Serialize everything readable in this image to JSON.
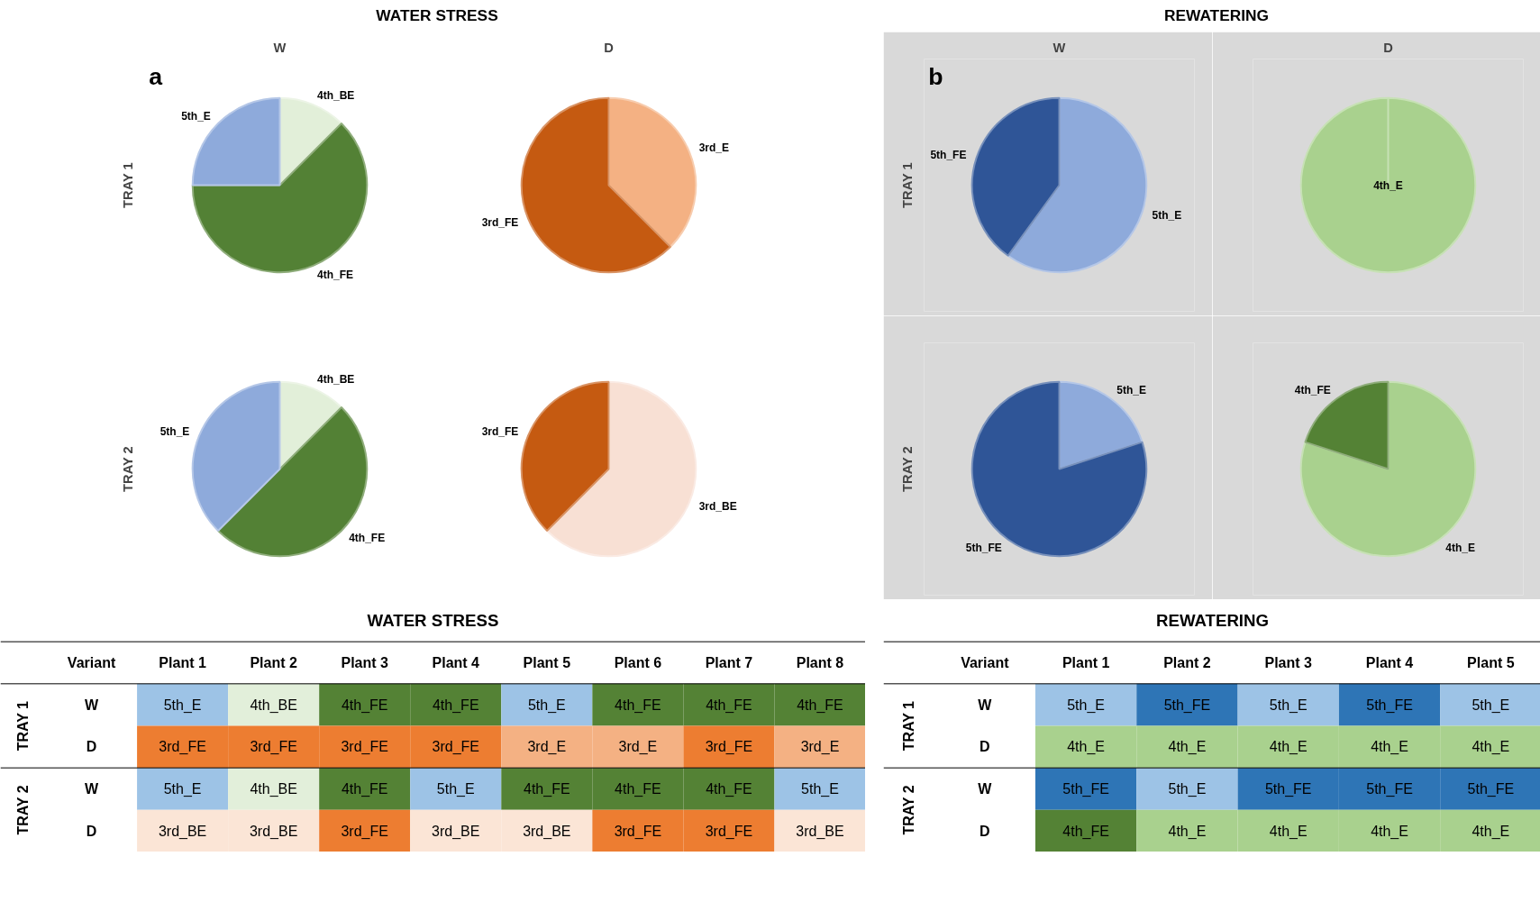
{
  "chart_data": [
    {
      "type": "pie",
      "title": "W",
      "ylabel": "TRAY 1",
      "annotations": [
        "WATER STRESS",
        "a"
      ],
      "categories": [
        "4th_BE",
        "4th_FE",
        "5th_E"
      ],
      "values": [
        12.5,
        62.5,
        25
      ],
      "colors": [
        "#e2efd9",
        "#538135",
        "#8eaadb"
      ]
    },
    {
      "type": "pie",
      "title": "D",
      "categories": [
        "3rd_E",
        "3rd_FE"
      ],
      "values": [
        37.5,
        62.5
      ],
      "colors": [
        "#f4b183",
        "#c55a11"
      ]
    },
    {
      "type": "pie",
      "ylabel": "TRAY 2",
      "categories": [
        "4th_BE",
        "4th_FE",
        "5th_E"
      ],
      "values": [
        12.5,
        50,
        37.5
      ],
      "colors": [
        "#e2efd9",
        "#538135",
        "#8eaadb"
      ]
    },
    {
      "type": "pie",
      "categories": [
        "3rd_BE",
        "3rd_FE"
      ],
      "values": [
        62.5,
        37.5
      ],
      "colors": [
        "#f8e0d4",
        "#c55a11"
      ]
    },
    {
      "type": "pie",
      "title": "W",
      "ylabel": "TRAY 1",
      "annotations": [
        "REWATERING",
        "b"
      ],
      "categories": [
        "5th_E",
        "5th_FE"
      ],
      "values": [
        60,
        40
      ],
      "colors": [
        "#8eaadb",
        "#2f5597"
      ]
    },
    {
      "type": "pie",
      "title": "D",
      "categories": [
        "4th_E"
      ],
      "values": [
        100
      ],
      "colors": [
        "#a9d18e"
      ]
    },
    {
      "type": "pie",
      "ylabel": "TRAY 2",
      "categories": [
        "5th_E",
        "5th_FE"
      ],
      "values": [
        20,
        80
      ],
      "colors": [
        "#8eaadb",
        "#2f5597"
      ]
    },
    {
      "type": "pie",
      "categories": [
        "4th_E",
        "4th_FE"
      ],
      "values": [
        80,
        20
      ],
      "colors": [
        "#a9d18e",
        "#548235"
      ]
    },
    {
      "type": "other",
      "title": "WATER STRESS",
      "ylabel": "Variant",
      "categories": [
        "Plant 1",
        "Plant 2",
        "Plant 3",
        "Plant 4",
        "Plant 5",
        "Plant 6",
        "Plant 7",
        "Plant 8"
      ],
      "y_categories": [
        "W",
        "D",
        "W",
        "D"
      ],
      "annotations": [
        "TRAY 1",
        "TRAY 2"
      ],
      "cell_labels": [
        [
          "5th_E",
          "4th_BE",
          "4th_FE",
          "4th_FE",
          "5th_E",
          "4th_FE",
          "4th_FE",
          "4th_FE"
        ],
        [
          "3rd_FE",
          "3rd_FE",
          "3rd_FE",
          "3rd_FE",
          "3rd_E",
          "3rd_E",
          "3rd_FE",
          "3rd_E"
        ],
        [
          "5th_E",
          "4th_BE",
          "4th_FE",
          "5th_E",
          "4th_FE",
          "4th_FE",
          "4th_FE",
          "5th_E"
        ],
        [
          "3rd_BE",
          "3rd_BE",
          "3rd_FE",
          "3rd_BE",
          "3rd_BE",
          "3rd_FE",
          "3rd_FE",
          "3rd_BE"
        ]
      ],
      "colors": [
        [
          "#9dc3e6",
          "#e2efda",
          "#548235",
          "#548235",
          "#9dc3e6",
          "#548235",
          "#548235",
          "#548235"
        ],
        [
          "#ed7d31",
          "#ed7d31",
          "#ed7d31",
          "#ed7d31",
          "#f4b183",
          "#f4b183",
          "#ed7d31",
          "#f4b183"
        ],
        [
          "#9dc3e6",
          "#e2efda",
          "#548235",
          "#9dc3e6",
          "#548235",
          "#548235",
          "#548235",
          "#9dc3e6"
        ],
        [
          "#fbe5d6",
          "#fbe5d6",
          "#ed7d31",
          "#fbe5d6",
          "#fbe5d6",
          "#ed7d31",
          "#ed7d31",
          "#fbe5d6"
        ]
      ]
    },
    {
      "type": "other",
      "title": "REWATERING",
      "ylabel": "Variant",
      "categories": [
        "Plant 1",
        "Plant 2",
        "Plant 3",
        "Plant 4",
        "Plant 5"
      ],
      "y_categories": [
        "W",
        "D",
        "W",
        "D"
      ],
      "annotations": [
        "TRAY 1",
        "TRAY 2"
      ],
      "cell_labels": [
        [
          "5th_E",
          "5th_FE",
          "5th_E",
          "5th_FE",
          "5th_E"
        ],
        [
          "4th_E",
          "4th_E",
          "4th_E",
          "4th_E",
          "4th_E"
        ],
        [
          "5th_FE",
          "5th_E",
          "5th_FE",
          "5th_FE",
          "5th_FE"
        ],
        [
          "4th_FE",
          "4th_E",
          "4th_E",
          "4th_E",
          "4th_E"
        ]
      ],
      "colors": [
        [
          "#9dc3e6",
          "#2e75b6",
          "#9dc3e6",
          "#2e75b6",
          "#9dc3e6"
        ],
        [
          "#a9d18e",
          "#a9d18e",
          "#a9d18e",
          "#a9d18e",
          "#a9d18e"
        ],
        [
          "#2e75b6",
          "#9dc3e6",
          "#2e75b6",
          "#2e75b6",
          "#2e75b6"
        ],
        [
          "#548235",
          "#a9d18e",
          "#a9d18e",
          "#a9d18e",
          "#a9d18e"
        ]
      ]
    }
  ]
}
